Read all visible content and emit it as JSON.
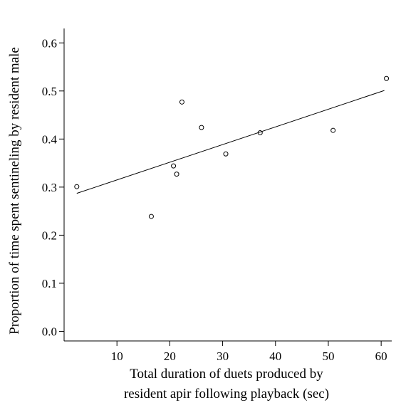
{
  "chart_data": {
    "type": "scatter",
    "xlabel_lines": [
      "Total duration of duets produced by",
      "resident apir following playback (sec)"
    ],
    "ylabel": "Proportion of time spent sentineling by resident male",
    "xlim": [
      0,
      62
    ],
    "ylim": [
      -0.02,
      0.63
    ],
    "xticks": [
      10,
      20,
      30,
      40,
      50,
      60
    ],
    "yticks": [
      0.0,
      0.1,
      0.2,
      0.3,
      0.4,
      0.5,
      0.6
    ],
    "points": [
      {
        "x": 2.4,
        "y": 0.301
      },
      {
        "x": 16.5,
        "y": 0.239
      },
      {
        "x": 20.7,
        "y": 0.344
      },
      {
        "x": 21.3,
        "y": 0.327
      },
      {
        "x": 22.3,
        "y": 0.477
      },
      {
        "x": 26.0,
        "y": 0.424
      },
      {
        "x": 30.6,
        "y": 0.369
      },
      {
        "x": 37.1,
        "y": 0.413
      },
      {
        "x": 50.9,
        "y": 0.418
      },
      {
        "x": 61.0,
        "y": 0.526
      }
    ],
    "trendline": {
      "x": [
        2.4,
        60.6
      ],
      "y": [
        0.287,
        0.501
      ]
    }
  }
}
